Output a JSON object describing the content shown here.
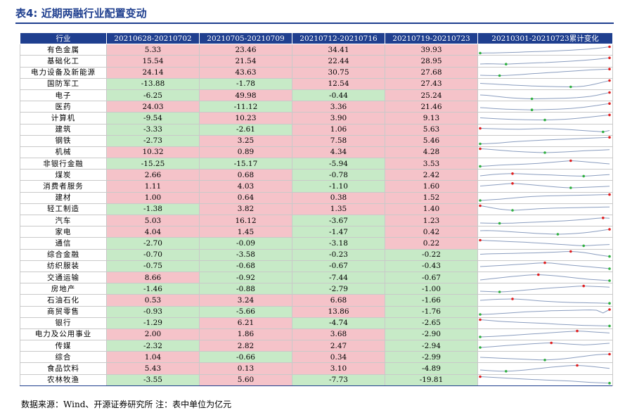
{
  "title": "表4: 近期两融行业配置变动",
  "headers": [
    "行业",
    "20210628-20210702",
    "20210705-20210709",
    "20210712-20210716",
    "20210719-20210723",
    "20210301-20210723累计变化"
  ],
  "rows": [
    {
      "industry": "有色金属",
      "w1": "5.33",
      "w2": "23.46",
      "w3": "34.41",
      "w4": "39.93"
    },
    {
      "industry": "基础化工",
      "w1": "15.54",
      "w2": "21.54",
      "w3": "22.44",
      "w4": "28.95"
    },
    {
      "industry": "电力设备及新能源",
      "w1": "24.14",
      "w2": "43.63",
      "w3": "30.75",
      "w4": "27.68"
    },
    {
      "industry": "国防军工",
      "w1": "-13.88",
      "w2": "-1.78",
      "w3": "12.54",
      "w4": "27.43"
    },
    {
      "industry": "电子",
      "w1": "-6.25",
      "w2": "49.98",
      "w3": "-0.44",
      "w4": "25.24"
    },
    {
      "industry": "医药",
      "w1": "24.03",
      "w2": "-11.12",
      "w3": "3.36",
      "w4": "21.46"
    },
    {
      "industry": "计算机",
      "w1": "-9.54",
      "w2": "10.23",
      "w3": "3.90",
      "w4": "9.13"
    },
    {
      "industry": "建筑",
      "w1": "-3.33",
      "w2": "-2.61",
      "w3": "1.06",
      "w4": "5.63"
    },
    {
      "industry": "钢铁",
      "w1": "-2.73",
      "w2": "3.25",
      "w3": "7.58",
      "w4": "5.46"
    },
    {
      "industry": "机械",
      "w1": "10.32",
      "w2": "0.89",
      "w3": "4.34",
      "w4": "4.28"
    },
    {
      "industry": "非银行金融",
      "w1": "-15.25",
      "w2": "-15.17",
      "w3": "-5.94",
      "w4": "3.53"
    },
    {
      "industry": "煤炭",
      "w1": "2.66",
      "w2": "0.68",
      "w3": "-0.78",
      "w4": "2.42"
    },
    {
      "industry": "消费者服务",
      "w1": "1.11",
      "w2": "4.03",
      "w3": "-1.10",
      "w4": "1.60"
    },
    {
      "industry": "建材",
      "w1": "1.00",
      "w2": "0.64",
      "w3": "0.38",
      "w4": "1.52"
    },
    {
      "industry": "轻工制造",
      "w1": "-1.38",
      "w2": "3.82",
      "w3": "1.35",
      "w4": "1.40"
    },
    {
      "industry": "汽车",
      "w1": "5.03",
      "w2": "16.12",
      "w3": "-3.67",
      "w4": "1.23"
    },
    {
      "industry": "家电",
      "w1": "4.04",
      "w2": "1.45",
      "w3": "-1.47",
      "w4": "0.42"
    },
    {
      "industry": "通信",
      "w1": "-2.70",
      "w2": "-0.09",
      "w3": "-3.18",
      "w4": "0.22"
    },
    {
      "industry": "综合金融",
      "w1": "-0.70",
      "w2": "-3.58",
      "w3": "-0.23",
      "w4": "-0.22"
    },
    {
      "industry": "纺织服装",
      "w1": "-0.75",
      "w2": "-0.68",
      "w3": "-0.67",
      "w4": "-0.43"
    },
    {
      "industry": "交通运输",
      "w1": "8.66",
      "w2": "-0.92",
      "w3": "-7.44",
      "w4": "-0.67"
    },
    {
      "industry": "房地产",
      "w1": "-1.46",
      "w2": "-0.88",
      "w3": "-2.79",
      "w4": "-1.00"
    },
    {
      "industry": "石油石化",
      "w1": "0.53",
      "w2": "3.24",
      "w3": "6.68",
      "w4": "-1.66"
    },
    {
      "industry": "商贸零售",
      "w1": "-0.93",
      "w2": "-5.66",
      "w3": "13.86",
      "w4": "-1.76"
    },
    {
      "industry": "银行",
      "w1": "-1.29",
      "w2": "6.21",
      "w3": "-4.74",
      "w4": "-2.65"
    },
    {
      "industry": "电力及公用事业",
      "w1": "2.00",
      "w2": "1.86",
      "w3": "3.68",
      "w4": "-2.90"
    },
    {
      "industry": "传媒",
      "w1": "-2.32",
      "w2": "2.82",
      "w3": "2.47",
      "w4": "-2.94"
    },
    {
      "industry": "综合",
      "w1": "1.04",
      "w2": "-0.66",
      "w3": "0.34",
      "w4": "-2.99"
    },
    {
      "industry": "食品饮料",
      "w1": "5.43",
      "w2": "0.13",
      "w3": "3.10",
      "w4": "-4.89"
    },
    {
      "industry": "农林牧渔",
      "w1": "-3.55",
      "w2": "5.60",
      "w3": "-7.73",
      "w4": "-19.81"
    }
  ],
  "sparklines": [
    {
      "values": [
        0.05,
        0.08,
        0.07,
        0.1,
        0.12,
        0.15,
        0.18,
        0.22,
        0.25,
        0.28,
        0.3,
        0.34,
        0.38,
        0.42,
        0.46,
        0.52,
        0.58,
        0.64,
        0.72,
        0.82,
        0.95
      ]
    },
    {
      "values": [
        0.1,
        0.14,
        0.12,
        0.1,
        0.08,
        0.12,
        0.16,
        0.2,
        0.24,
        0.28,
        0.3,
        0.35,
        0.4,
        0.45,
        0.5,
        0.56,
        0.62,
        0.7,
        0.78,
        0.88,
        0.97
      ]
    },
    {
      "values": [
        0.1,
        0.08,
        0.06,
        0.05,
        0.08,
        0.12,
        0.18,
        0.25,
        0.32,
        0.38,
        0.44,
        0.5,
        0.55,
        0.62,
        0.68,
        0.74,
        0.8,
        0.86,
        0.9,
        0.94,
        0.98
      ]
    },
    {
      "values": [
        0.55,
        0.5,
        0.46,
        0.4,
        0.36,
        0.3,
        0.26,
        0.22,
        0.18,
        0.15,
        0.12,
        0.1,
        0.08,
        0.06,
        0.05,
        0.08,
        0.15,
        0.3,
        0.5,
        0.72,
        0.95
      ]
    },
    {
      "values": [
        0.6,
        0.55,
        0.45,
        0.35,
        0.25,
        0.18,
        0.12,
        0.08,
        0.05,
        0.06,
        0.08,
        0.1,
        0.12,
        0.14,
        0.18,
        0.22,
        0.3,
        0.4,
        0.55,
        0.75,
        0.95
      ]
    },
    {
      "values": [
        0.4,
        0.35,
        0.28,
        0.22,
        0.18,
        0.15,
        0.12,
        0.1,
        0.08,
        0.1,
        0.12,
        0.15,
        0.18,
        0.22,
        0.28,
        0.36,
        0.45,
        0.58,
        0.7,
        0.85,
        0.98
      ]
    },
    {
      "values": [
        0.55,
        0.5,
        0.45,
        0.4,
        0.36,
        0.32,
        0.3,
        0.28,
        0.26,
        0.25,
        0.24,
        0.26,
        0.3,
        0.34,
        0.4,
        0.48,
        0.56,
        0.66,
        0.76,
        0.86,
        0.96
      ]
    },
    {
      "values": [
        0.65,
        0.62,
        0.6,
        0.58,
        0.55,
        0.54,
        0.52,
        0.55,
        0.58,
        0.6,
        0.62,
        0.6,
        0.56,
        0.52,
        0.46,
        0.4,
        0.34,
        0.28,
        0.22,
        0.15,
        0.35
      ]
    },
    {
      "values": [
        0.05,
        0.08,
        0.12,
        0.18,
        0.26,
        0.34,
        0.4,
        0.45,
        0.5,
        0.55,
        0.6,
        0.64,
        0.68,
        0.7,
        0.74,
        0.78,
        0.82,
        0.86,
        0.9,
        0.94,
        0.98
      ]
    },
    {
      "values": [
        0.95,
        0.9,
        0.82,
        0.75,
        0.68,
        0.6,
        0.55,
        0.5,
        0.46,
        0.42,
        0.4,
        0.42,
        0.46,
        0.5,
        0.55,
        0.6,
        0.66,
        0.7,
        0.74,
        0.78,
        0.82
      ]
    },
    {
      "values": [
        0.15,
        0.2,
        0.26,
        0.32,
        0.36,
        0.4,
        0.44,
        0.48,
        0.52,
        0.58,
        0.65,
        0.72,
        0.8,
        0.88,
        0.95,
        0.9,
        0.82,
        0.74,
        0.66,
        0.58,
        0.5
      ]
    },
    {
      "values": [
        0.4,
        0.5,
        0.6,
        0.66,
        0.7,
        0.72,
        0.7,
        0.66,
        0.62,
        0.58,
        0.55,
        0.52,
        0.48,
        0.44,
        0.4,
        0.38,
        0.36,
        0.4,
        0.46,
        0.52,
        0.58
      ]
    },
    {
      "values": [
        0.55,
        0.62,
        0.7,
        0.78,
        0.86,
        0.92,
        0.88,
        0.8,
        0.72,
        0.64,
        0.56,
        0.48,
        0.4,
        0.34,
        0.3,
        0.32,
        0.36,
        0.4,
        0.44,
        0.48,
        0.52
      ]
    },
    {
      "values": [
        0.1,
        0.16,
        0.22,
        0.28,
        0.36,
        0.44,
        0.52,
        0.6,
        0.66,
        0.7,
        0.74,
        0.76,
        0.78,
        0.8,
        0.82,
        0.84,
        0.86,
        0.88,
        0.9,
        0.92,
        0.94
      ]
    },
    {
      "values": [
        0.95,
        0.8,
        0.62,
        0.48,
        0.38,
        0.3,
        0.34,
        0.4,
        0.46,
        0.52,
        0.56,
        0.6,
        0.62,
        0.64,
        0.66,
        0.68,
        0.7,
        0.72,
        0.74,
        0.76,
        0.78
      ]
    },
    {
      "values": [
        0.2,
        0.18,
        0.16,
        0.15,
        0.16,
        0.18,
        0.22,
        0.26,
        0.3,
        0.34,
        0.38,
        0.42,
        0.46,
        0.5,
        0.56,
        0.62,
        0.7,
        0.78,
        0.86,
        0.92,
        0.88
      ]
    },
    {
      "values": [
        0.7,
        0.72,
        0.7,
        0.66,
        0.6,
        0.54,
        0.48,
        0.42,
        0.36,
        0.3,
        0.26,
        0.22,
        0.2,
        0.22,
        0.26,
        0.32,
        0.4,
        0.5,
        0.62,
        0.76,
        0.9
      ]
    },
    {
      "values": [
        0.95,
        0.9,
        0.86,
        0.82,
        0.78,
        0.74,
        0.7,
        0.66,
        0.6,
        0.55,
        0.5,
        0.44,
        0.38,
        0.32,
        0.26,
        0.2,
        0.16,
        0.2,
        0.26,
        0.3,
        0.34
      ]
    },
    {
      "values": [
        0.55,
        0.6,
        0.62,
        0.64,
        0.66,
        0.68,
        0.7,
        0.72,
        0.74,
        0.76,
        0.8,
        0.84,
        0.88,
        0.92,
        0.95,
        0.9,
        0.8,
        0.66,
        0.5,
        0.36,
        0.24
      ]
    },
    {
      "values": [
        0.4,
        0.45,
        0.5,
        0.55,
        0.6,
        0.66,
        0.72,
        0.78,
        0.84,
        0.9,
        0.94,
        0.9,
        0.8,
        0.7,
        0.6,
        0.52,
        0.44,
        0.36,
        0.28,
        0.2,
        0.1
      ]
    },
    {
      "values": [
        0.2,
        0.3,
        0.4,
        0.5,
        0.6,
        0.7,
        0.78,
        0.86,
        0.92,
        0.95,
        0.9,
        0.84,
        0.76,
        0.66,
        0.56,
        0.46,
        0.36,
        0.28,
        0.22,
        0.16,
        0.1
      ]
    },
    {
      "values": [
        0.2,
        0.16,
        0.12,
        0.1,
        0.14,
        0.2,
        0.28,
        0.36,
        0.44,
        0.52,
        0.6,
        0.66,
        0.72,
        0.78,
        0.84,
        0.9,
        0.94,
        0.9,
        0.86,
        0.82,
        0.78
      ]
    },
    {
      "values": [
        0.5,
        0.56,
        0.62,
        0.66,
        0.68,
        0.7,
        0.66,
        0.6,
        0.52,
        0.44,
        0.38,
        0.32,
        0.28,
        0.24,
        0.2,
        0.18,
        0.16,
        0.14,
        0.12,
        0.1,
        0.08
      ]
    },
    {
      "values": [
        0.1,
        0.12,
        0.16,
        0.22,
        0.28,
        0.34,
        0.4,
        0.46,
        0.5,
        0.54,
        0.58,
        0.62,
        0.64,
        0.66,
        0.68,
        0.7,
        0.72,
        0.74,
        0.7,
        0.3,
        0.8
      ]
    },
    {
      "values": [
        0.95,
        0.88,
        0.8,
        0.72,
        0.66,
        0.62,
        0.58,
        0.54,
        0.5,
        0.46,
        0.42,
        0.36,
        0.3,
        0.26,
        0.22,
        0.18,
        0.14,
        0.12,
        0.1,
        0.08,
        0.06
      ]
    },
    {
      "values": [
        0.1,
        0.14,
        0.18,
        0.22,
        0.28,
        0.34,
        0.4,
        0.46,
        0.52,
        0.58,
        0.64,
        0.7,
        0.76,
        0.82,
        0.88,
        0.94,
        0.9,
        0.84,
        0.78,
        0.72,
        0.66
      ]
    },
    {
      "values": [
        0.3,
        0.36,
        0.42,
        0.5,
        0.58,
        0.64,
        0.7,
        0.76,
        0.82,
        0.88,
        0.92,
        0.95,
        0.9,
        0.84,
        0.78,
        0.72,
        0.66,
        0.7,
        0.76,
        0.84,
        0.9
      ]
    },
    {
      "values": [
        0.5,
        0.46,
        0.42,
        0.38,
        0.34,
        0.3,
        0.26,
        0.22,
        0.18,
        0.14,
        0.12,
        0.16,
        0.22,
        0.3,
        0.4,
        0.52,
        0.64,
        0.76,
        0.86,
        0.92,
        0.95
      ]
    },
    {
      "values": [
        0.3,
        0.24,
        0.18,
        0.14,
        0.12,
        0.16,
        0.22,
        0.3,
        0.4,
        0.5,
        0.6,
        0.7,
        0.78,
        0.86,
        0.92,
        0.95,
        0.9,
        0.82,
        0.72,
        0.62,
        0.52
      ]
    },
    {
      "values": [
        0.95,
        0.9,
        0.85,
        0.8,
        0.75,
        0.7,
        0.65,
        0.6,
        0.55,
        0.52,
        0.48,
        0.44,
        0.4,
        0.36,
        0.32,
        0.26,
        0.2,
        0.14,
        0.1,
        0.06,
        0.03
      ]
    }
  ],
  "colors": {
    "header_bg": "#1f3f8f",
    "positive": "#f5c3c9",
    "negative": "#c7eac7",
    "spark_line": "#8a9dbf",
    "spark_max": "#e02020",
    "spark_min": "#30b040"
  },
  "footer": "数据来源：Wind、开源证券研究所  注：表中单位为亿元"
}
